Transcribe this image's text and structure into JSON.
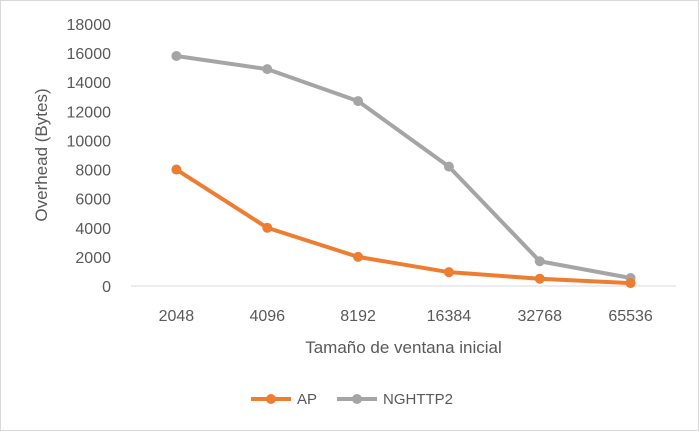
{
  "chart_data": {
    "type": "line",
    "categories": [
      "2048",
      "4096",
      "8192",
      "16384",
      "32768",
      "65536"
    ],
    "series": [
      {
        "name": "AP",
        "color": "#ed7d31",
        "values": [
          8000,
          4000,
          2000,
          950,
          500,
          200
        ]
      },
      {
        "name": "NGHTTP2",
        "color": "#a5a5a5",
        "values": [
          15800,
          14900,
          12700,
          8200,
          1700,
          550
        ]
      }
    ],
    "xlabel": "Tamaño de ventana inicial",
    "ylabel": "Overhead (Bytes)",
    "ylim": [
      0,
      18000
    ],
    "yticks": [
      0,
      2000,
      4000,
      6000,
      8000,
      10000,
      12000,
      14000,
      16000,
      18000
    ],
    "grid": false,
    "legend_position": "bottom"
  }
}
